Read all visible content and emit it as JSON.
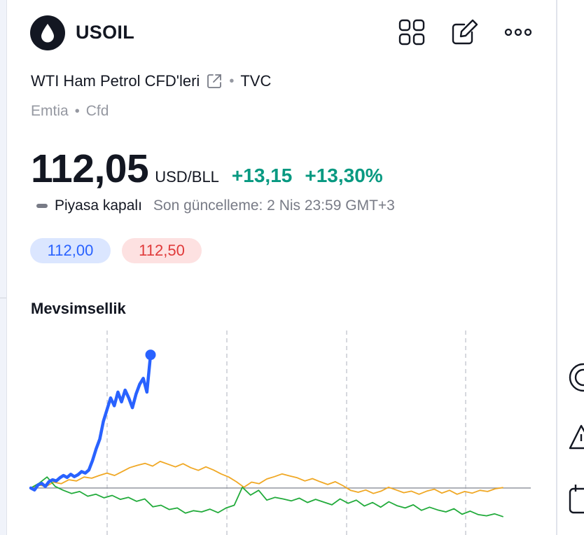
{
  "header": {
    "symbol": "USOIL",
    "logo_icon": "oil-drop-icon",
    "tools": [
      "grid-layout-icon",
      "edit-note-icon",
      "more-dots-icon"
    ]
  },
  "instrument": {
    "name": "WTI Ham Petrol CFD'leri",
    "exchange": "TVC",
    "category": "Emtia",
    "type": "Cfd"
  },
  "quote": {
    "price": "112,05",
    "currency": "USD/BLL",
    "change": "+13,15",
    "change_pct": "+13,30%",
    "market_status": "Piyasa kapalı",
    "last_update": "Son güncelleme: 2 Nis 23:59 GMT+3",
    "bid": "112,00",
    "ask": "112,50",
    "positive_color": "#089981"
  },
  "seasonality": {
    "title": "Mevsimsellik"
  },
  "chart_data": {
    "type": "line",
    "title": "Mevsimsellik",
    "xlabel": "",
    "ylabel": "",
    "grid": "vertical dashed lines",
    "baseline": 0,
    "ylim": [
      -12,
      42
    ],
    "series": [
      {
        "color": "#2962ff",
        "values": [
          0,
          -0.5,
          0.8,
          1.2,
          0.4,
          1.6,
          2.1,
          1.8,
          2.6,
          3.2,
          2.7,
          3.5,
          2.9,
          3.4,
          4.2,
          3.8,
          4.6,
          7,
          10,
          12.5,
          17,
          20,
          23,
          21,
          24.5,
          22,
          25,
          23,
          20.5,
          24,
          26.5,
          28,
          24.5,
          34
        ]
      },
      {
        "color": "#f0a825",
        "values": [
          0,
          0.8,
          0.4,
          1.5,
          1.1,
          2.1,
          1.8,
          2.8,
          2.5,
          3.2,
          3.8,
          3.2,
          4.2,
          5.2,
          5.8,
          6.3,
          5.6,
          6.8,
          6.1,
          5.4,
          6.2,
          5.2,
          4.5,
          5.4,
          4.6,
          3.6,
          2.8,
          1.6,
          0.2,
          1.5,
          1.1,
          2.3,
          2.9,
          3.6,
          3.1,
          2.6,
          1.8,
          2.4,
          1.6,
          0.9,
          1.6,
          0.6,
          -0.6,
          -1.1,
          -0.5,
          -1.4,
          -0.8,
          0.2,
          -0.5,
          -1.2,
          -0.8,
          -1.6,
          -0.8,
          -0.3,
          -1.3,
          -0.6,
          -1.6,
          -0.9,
          -1.3,
          -0.6,
          -0.9,
          -0.2,
          0.1
        ]
      },
      {
        "color": "#22ab3b",
        "values": [
          0,
          1.2,
          2.8,
          0.4,
          -0.6,
          -1.4,
          -0.9,
          -2.1,
          -1.6,
          -2.5,
          -1.9,
          -2.9,
          -2.4,
          -3.4,
          -2.8,
          -4.8,
          -4.4,
          -5.5,
          -5.1,
          -6.4,
          -5.8,
          -6.1,
          -5.4,
          -6.3,
          -5.1,
          -4.4,
          0.2,
          -1.8,
          -0.6,
          -3.1,
          -2.4,
          -2.8,
          -3.3,
          -2.6,
          -3.7,
          -2.9,
          -3.6,
          -4.3,
          -2.8,
          -3.9,
          -3.1,
          -4.6,
          -3.7,
          -4.9,
          -3.5,
          -4.5,
          -5.1,
          -4.3,
          -5.7,
          -4.9,
          -5.6,
          -6.1,
          -5.3,
          -6.7,
          -5.9,
          -6.8,
          -7.1,
          -6.6,
          -7.3
        ]
      }
    ]
  },
  "sidebar_right": [
    "target-icon",
    "alert-triangle-icon",
    "calendar-icon"
  ]
}
